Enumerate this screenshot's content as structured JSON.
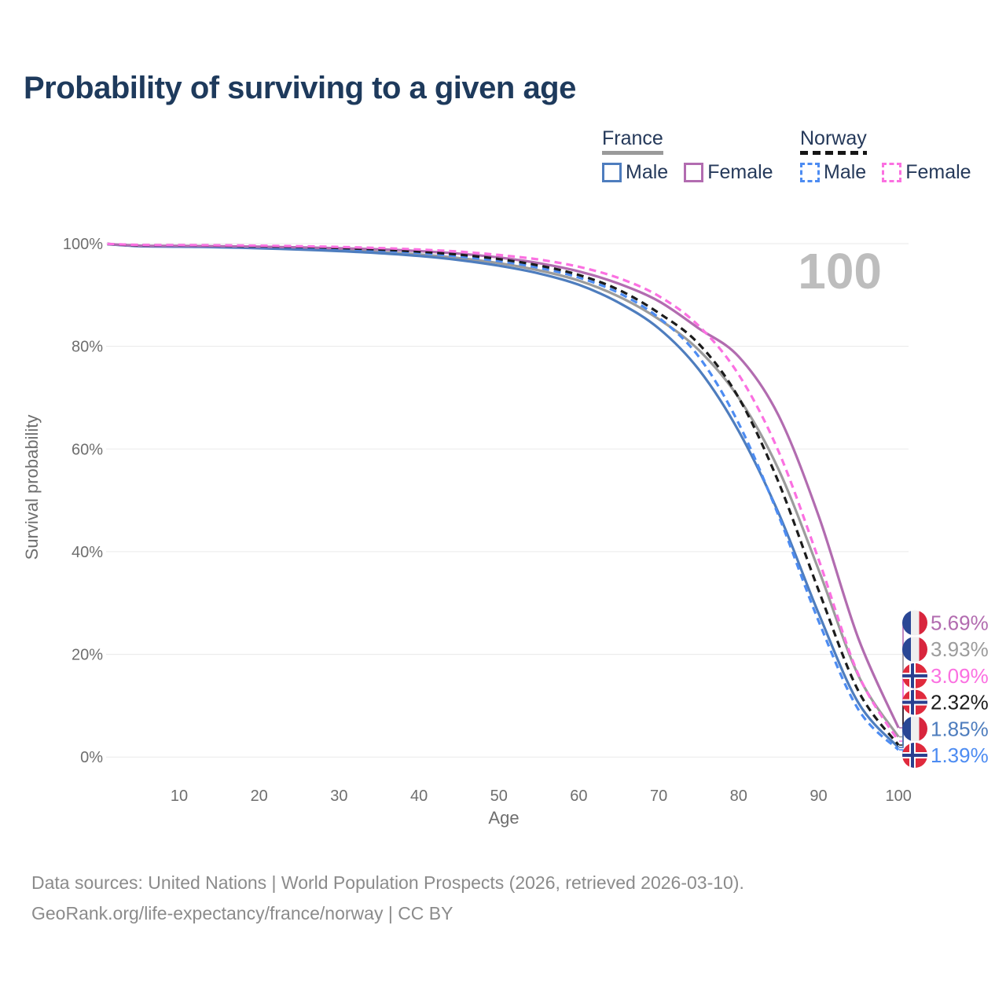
{
  "page_title": "Probability of surviving to a given age",
  "legend": {
    "groups": [
      {
        "id": "france",
        "label": "France",
        "line_style": "solid",
        "underline_color": "#9a9a9a",
        "items": [
          {
            "id": "france-male",
            "label": "Male",
            "color": "#4e7dbe",
            "dash": false
          },
          {
            "id": "france-female",
            "label": "Female",
            "color": "#b26cb0",
            "dash": false
          }
        ]
      },
      {
        "id": "norway",
        "label": "Norway",
        "line_style": "dashed",
        "underline_color": "#161616",
        "items": [
          {
            "id": "norway-male",
            "label": "Male",
            "color": "#4d8cf2",
            "dash": true
          },
          {
            "id": "norway-female",
            "label": "Female",
            "color": "#fb70e1",
            "dash": true
          }
        ]
      }
    ]
  },
  "chart_data": {
    "type": "line",
    "title": "Probability of surviving to a given age",
    "xlabel": "Age",
    "ylabel": "Survival probability",
    "age_counter": "100",
    "xlim": [
      0,
      100
    ],
    "ylim": [
      0,
      100
    ],
    "grid": "horizontal",
    "legend_position": "top-right",
    "x_ticks": [
      10,
      20,
      30,
      40,
      50,
      60,
      70,
      80,
      90,
      100
    ],
    "y_ticks": [
      {
        "value": 0,
        "label": "0%"
      },
      {
        "value": 20,
        "label": "20%"
      },
      {
        "value": 40,
        "label": "40%"
      },
      {
        "value": 60,
        "label": "60%"
      },
      {
        "value": 80,
        "label": "80%"
      },
      {
        "value": 100,
        "label": "100%"
      }
    ],
    "x": [
      0,
      5,
      10,
      15,
      20,
      25,
      30,
      35,
      40,
      45,
      50,
      55,
      60,
      65,
      70,
      75,
      80,
      85,
      90,
      95,
      100
    ],
    "series": [
      {
        "name": "France (both sexes)",
        "country": "france",
        "sex": "both",
        "color": "#9c9c9c",
        "dashed": false,
        "end_label": "3.93%",
        "values": [
          100,
          99.55,
          99.5,
          99.4,
          99.25,
          99.05,
          98.75,
          98.4,
          97.9,
          97.2,
          96.2,
          94.8,
          92.8,
          89.7,
          85.3,
          79.3,
          70.0,
          56.0,
          36.5,
          15.8,
          3.93
        ]
      },
      {
        "name": "France Male",
        "country": "france",
        "sex": "male",
        "color": "#4e7dbe",
        "dashed": false,
        "end_label": "1.85%",
        "values": [
          100,
          99.5,
          99.4,
          99.3,
          99.1,
          98.85,
          98.55,
          98.15,
          97.6,
          96.8,
          95.7,
          94.2,
          92.0,
          88.5,
          83.5,
          75.5,
          63.5,
          47.5,
          28.0,
          10.5,
          1.85
        ]
      },
      {
        "name": "France Female",
        "country": "france",
        "sex": "female",
        "color": "#b26cb0",
        "dashed": false,
        "end_label": "5.69%",
        "values": [
          100,
          99.6,
          99.55,
          99.5,
          99.4,
          99.28,
          99.1,
          98.9,
          98.55,
          98.05,
          97.3,
          96.2,
          94.6,
          92.2,
          88.8,
          83.5,
          78.0,
          66.5,
          47.0,
          23.0,
          5.69
        ]
      },
      {
        "name": "Norway Male",
        "country": "norway",
        "sex": "male",
        "color": "#4d8cf2",
        "dashed": true,
        "end_label": "1.39%",
        "values": [
          100,
          99.7,
          99.65,
          99.6,
          99.45,
          99.25,
          99.0,
          98.65,
          98.2,
          97.5,
          96.6,
          95.3,
          93.4,
          90.4,
          85.6,
          78.0,
          65.0,
          47.0,
          26.5,
          9.2,
          1.39
        ]
      },
      {
        "name": "Norway (both sexes)",
        "country": "norway",
        "sex": "both",
        "color": "#1c1c1c",
        "dashed": true,
        "end_label": "2.32%",
        "values": [
          100,
          99.7,
          99.68,
          99.62,
          99.5,
          99.35,
          99.15,
          98.85,
          98.45,
          97.85,
          97.0,
          95.75,
          93.9,
          91.0,
          86.5,
          80.5,
          70.0,
          53.5,
          32.5,
          12.8,
          2.32
        ]
      },
      {
        "name": "Norway Female",
        "country": "norway",
        "sex": "female",
        "color": "#fb70e1",
        "dashed": true,
        "end_label": "3.09%",
        "values": [
          100,
          99.75,
          99.72,
          99.68,
          99.6,
          99.5,
          99.35,
          99.15,
          98.85,
          98.45,
          97.8,
          96.9,
          95.5,
          93.3,
          89.8,
          84.0,
          74.5,
          59.5,
          38.5,
          16.0,
          3.09
        ]
      }
    ]
  },
  "flags": {
    "france": {
      "blue": "#2a4795",
      "white": "#efefef",
      "red": "#d8253d"
    },
    "norway": {
      "red": "#e02a3d",
      "white": "#ffffff",
      "blue": "#2a3f8f"
    }
  },
  "footer": {
    "line1": "Data sources: United Nations | World Population Prospects (2026, retrieved 2026-03-10).",
    "line2": "GeoRank.org/life-expectancy/france/norway | CC BY"
  }
}
